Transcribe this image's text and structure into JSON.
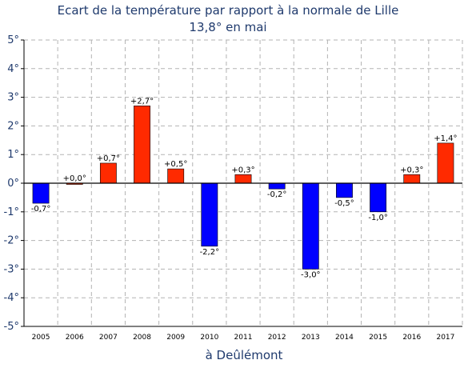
{
  "chart_data": {
    "type": "bar",
    "title": "Ecart de la température par rapport à la normale de Lille",
    "subtitle": "13,8° en mai",
    "xlabel": "à Deûlémont",
    "categories": [
      "2005",
      "2006",
      "2007",
      "2008",
      "2009",
      "2010",
      "2011",
      "2012",
      "2013",
      "2014",
      "2015",
      "2016",
      "2017"
    ],
    "values": [
      -0.7,
      0.0,
      0.7,
      2.7,
      0.5,
      -2.2,
      0.3,
      -0.2,
      -3.0,
      -0.5,
      -1.0,
      0.3,
      1.4
    ],
    "data_labels": [
      "-0,7°",
      "+0,0°",
      "+0,7°",
      "+2,7°",
      "+0,5°",
      "-2,2°",
      "+0,3°",
      "-0,2°",
      "-3,0°",
      "-0,5°",
      "-1,0°",
      "+0,3°",
      "+1,4°"
    ],
    "yticks": [
      "5°",
      "4°",
      "3°",
      "2°",
      "1°",
      "0°",
      "-1°",
      "-2°",
      "-3°",
      "-4°",
      "-5°"
    ],
    "ylim": [
      -5,
      5
    ],
    "grid": true,
    "colors": {
      "positive": "#ff2a00",
      "negative": "#0000ff",
      "text": "#1f3a6d"
    }
  }
}
